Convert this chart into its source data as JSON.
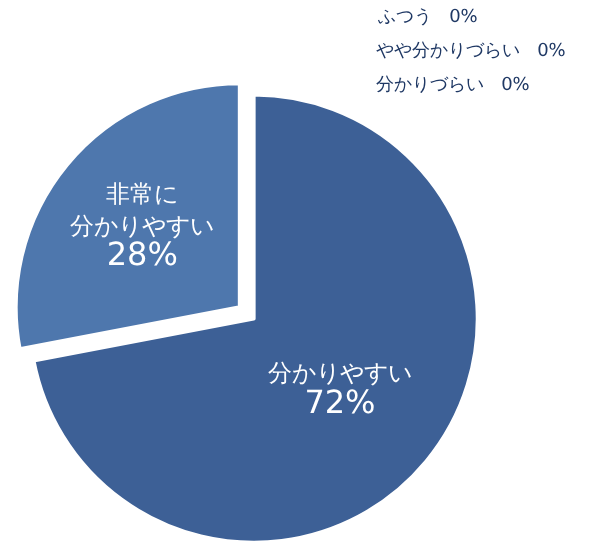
{
  "chart_data": {
    "type": "pie",
    "categories": [
      "分かりやすい",
      "非常に分かりやすい",
      "ふつう",
      "やや分かりづらい",
      "分かりづらい"
    ],
    "values": [
      72,
      28,
      0,
      0,
      0
    ],
    "value_labels": [
      "72%",
      "28%",
      "0%",
      "0%",
      "0%"
    ],
    "colors": [
      "#3d6096",
      "#4e77ad",
      "#6a8fc4",
      "#7fa0cf",
      "#94b2da"
    ],
    "legend": false
  }
}
